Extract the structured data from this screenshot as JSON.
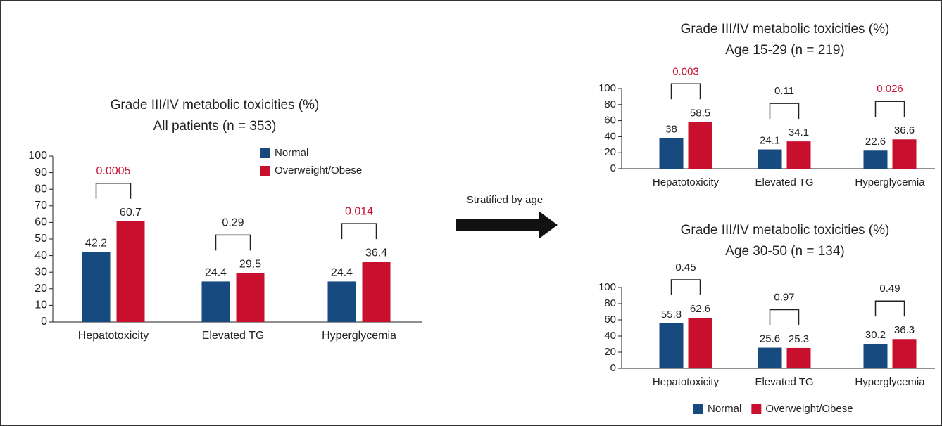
{
  "annotation": "Stratified by age",
  "chart_data": [
    {
      "type": "bar",
      "title": "Grade III/IV metabolic toxicities (%)",
      "subtitle": "All patients (n = 353)",
      "categories": [
        "Hepatotoxicity",
        "Elevated TG",
        "Hyperglycemia"
      ],
      "series": [
        {
          "name": "Normal",
          "color": "#174a7e",
          "values": [
            42.2,
            24.4,
            24.4
          ]
        },
        {
          "name": "Overweight/Obese",
          "color": "#c8102e",
          "values": [
            60.7,
            29.5,
            36.4
          ]
        }
      ],
      "p_values": [
        "0.0005",
        "0.29",
        "0.014"
      ],
      "p_value_colors": [
        "#c8102e",
        "#222222",
        "#c8102e"
      ],
      "ylim": [
        0,
        100
      ],
      "yticks": [
        0,
        10,
        20,
        30,
        40,
        50,
        60,
        70,
        80,
        90,
        100
      ],
      "grid": false,
      "legend": "upper right"
    },
    {
      "type": "bar",
      "title": "Grade III/IV metabolic toxicities (%)",
      "subtitle": "Age 15-29 (n = 219)",
      "categories": [
        "Hepatotoxicity",
        "Elevated TG",
        "Hyperglycemia"
      ],
      "series": [
        {
          "color": "#174a7e",
          "values": [
            38,
            24.1,
            22.6
          ]
        },
        {
          "color": "#c8102e",
          "values": [
            58.5,
            34.1,
            36.6
          ]
        }
      ],
      "p_values": [
        "0.003",
        "0.11",
        "0.026"
      ],
      "p_value_colors": [
        "#c8102e",
        "#222222",
        "#c8102e"
      ],
      "ylim": [
        0,
        100
      ],
      "yticks": [
        0,
        20,
        40,
        60,
        80,
        100
      ],
      "grid": false,
      "legend": "none"
    },
    {
      "type": "bar",
      "title": "Grade III/IV metabolic toxicities (%)",
      "subtitle": "Age 30-50 (n = 134)",
      "categories": [
        "Hepatotoxicity",
        "Elevated TG",
        "Hyperglycemia"
      ],
      "series": [
        {
          "name": "Normal",
          "color": "#174a7e",
          "values": [
            55.8,
            25.6,
            30.2
          ]
        },
        {
          "name": "Overweight/Obese",
          "color": "#c8102e",
          "values": [
            62.6,
            25.3,
            36.3
          ]
        }
      ],
      "p_values": [
        "0.45",
        "0.97",
        "0.49"
      ],
      "p_value_colors": [
        "#222222",
        "#222222",
        "#222222"
      ],
      "ylim": [
        0,
        100
      ],
      "yticks": [
        0,
        20,
        40,
        60,
        80,
        100
      ],
      "grid": false,
      "legend": "bottom"
    }
  ]
}
